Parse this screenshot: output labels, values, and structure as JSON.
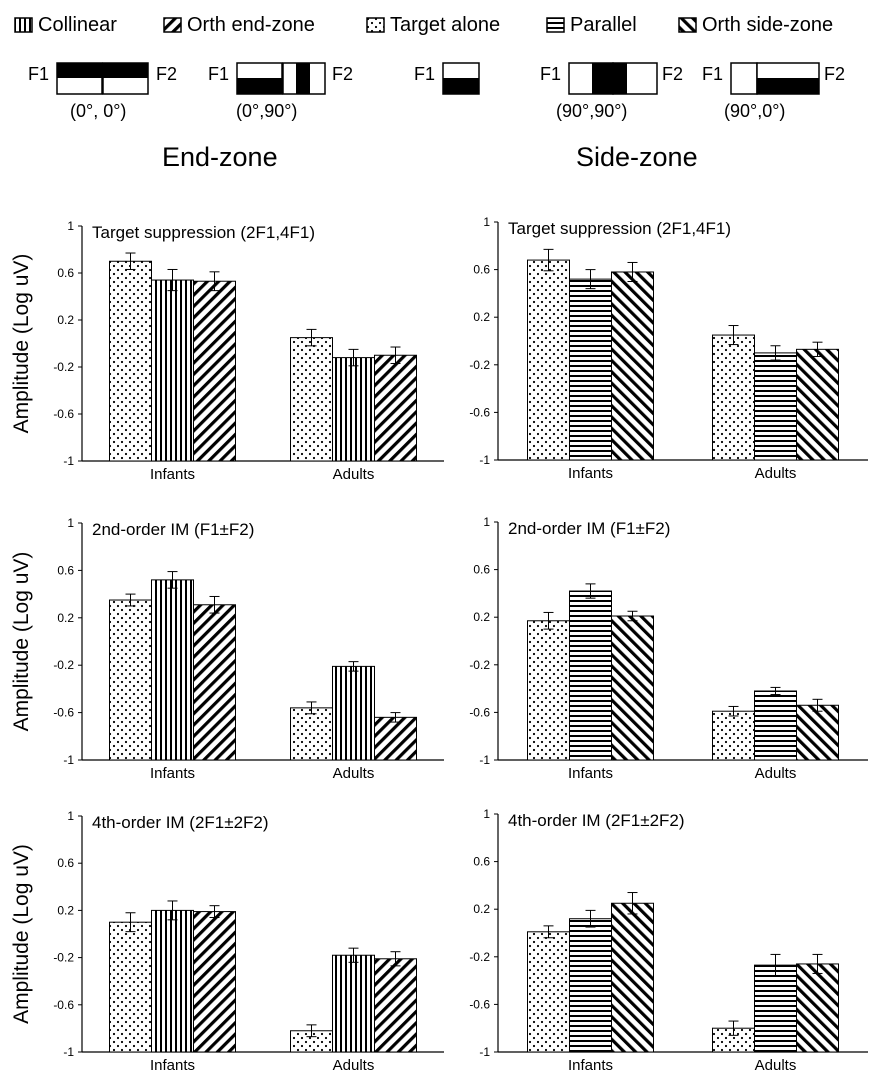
{
  "legend": [
    {
      "label": "Collinear",
      "pattern": "vertical"
    },
    {
      "label": "Orth end-zone",
      "pattern": "diag-up"
    },
    {
      "label": "Target alone",
      "pattern": "dots"
    },
    {
      "label": "Parallel",
      "pattern": "horizontal"
    },
    {
      "label": "Orth side-zone",
      "pattern": "diag-down"
    }
  ],
  "configs": [
    {
      "f1": "F1",
      "f2": "F2",
      "angle": "(0°, 0°)"
    },
    {
      "f1": "F1",
      "f2": "F2",
      "angle": "(0°,90°)"
    },
    {
      "f1": "F1",
      "f2": "",
      "angle": ""
    },
    {
      "f1": "F1",
      "f2": "F2",
      "angle": "(90°,90°)"
    },
    {
      "f1": "F1",
      "f2": "F2",
      "angle": "(90°,0°)"
    }
  ],
  "headings": {
    "end_zone": "End-zone",
    "side_zone": "Side-zone"
  },
  "colors": {
    "ink": "#000000",
    "background": "#ffffff"
  },
  "chart_data": [
    {
      "type": "bar",
      "zone": "end",
      "title": "Target suppression  (2F1,4F1)",
      "ylabel": "Amplitude (Log uV)",
      "categories": [
        "Infants",
        "Adults"
      ],
      "ylim": [
        -1,
        1
      ],
      "yticks": [
        "1",
        "0.6",
        "0.2",
        "-0.2",
        "-0.6",
        "-1"
      ],
      "series": [
        {
          "name": "Target alone",
          "pattern": "dots",
          "values": [
            0.7,
            0.05
          ],
          "errors": [
            0.07,
            0.07
          ]
        },
        {
          "name": "Collinear",
          "pattern": "vertical",
          "values": [
            0.54,
            -0.12
          ],
          "errors": [
            0.09,
            0.07
          ]
        },
        {
          "name": "Orth end-zone",
          "pattern": "diag-up",
          "values": [
            0.53,
            -0.1
          ],
          "errors": [
            0.08,
            0.07
          ]
        }
      ]
    },
    {
      "type": "bar",
      "zone": "side",
      "title": "Target suppression  (2F1,4F1)",
      "ylabel": "",
      "categories": [
        "Infants",
        "Adults"
      ],
      "ylim": [
        -1,
        1
      ],
      "yticks": [
        "1",
        "0.6",
        "0.2",
        "-0.2",
        "-0.6",
        "-1"
      ],
      "series": [
        {
          "name": "Target alone",
          "pattern": "dots",
          "values": [
            0.68,
            0.05
          ],
          "errors": [
            0.09,
            0.08
          ]
        },
        {
          "name": "Parallel",
          "pattern": "horizontal",
          "values": [
            0.52,
            -0.1
          ],
          "errors": [
            0.08,
            0.06
          ]
        },
        {
          "name": "Orth side-zone",
          "pattern": "diag-down",
          "values": [
            0.58,
            -0.07
          ],
          "errors": [
            0.08,
            0.06
          ]
        }
      ]
    },
    {
      "type": "bar",
      "zone": "end",
      "title": "2nd-order IM (F1±F2)",
      "ylabel": "Amplitude (Log uV)",
      "categories": [
        "Infants",
        "Adults"
      ],
      "ylim": [
        -1,
        1
      ],
      "yticks": [
        "1",
        "0.6",
        "0.2",
        "-0.2",
        "-0.6",
        "-1"
      ],
      "series": [
        {
          "name": "Target alone",
          "pattern": "dots",
          "values": [
            0.35,
            -0.56
          ],
          "errors": [
            0.05,
            0.05
          ]
        },
        {
          "name": "Collinear",
          "pattern": "vertical",
          "values": [
            0.52,
            -0.21
          ],
          "errors": [
            0.07,
            0.04
          ]
        },
        {
          "name": "Orth end-zone",
          "pattern": "diag-up",
          "values": [
            0.31,
            -0.64
          ],
          "errors": [
            0.07,
            0.04
          ]
        }
      ]
    },
    {
      "type": "bar",
      "zone": "side",
      "title": "2nd-order IM (F1±F2)",
      "ylabel": "",
      "categories": [
        "Infants",
        "Adults"
      ],
      "ylim": [
        -1,
        1
      ],
      "yticks": [
        "1",
        "0.6",
        "0.2",
        "-0.2",
        "-0.6",
        "-1"
      ],
      "series": [
        {
          "name": "Target alone",
          "pattern": "dots",
          "values": [
            0.17,
            -0.59
          ],
          "errors": [
            0.07,
            0.04
          ]
        },
        {
          "name": "Parallel",
          "pattern": "horizontal",
          "values": [
            0.42,
            -0.42
          ],
          "errors": [
            0.06,
            0.03
          ]
        },
        {
          "name": "Orth side-zone",
          "pattern": "diag-down",
          "values": [
            0.21,
            -0.54
          ],
          "errors": [
            0.04,
            0.05
          ]
        }
      ]
    },
    {
      "type": "bar",
      "zone": "end",
      "title": "4th-order IM (2F1±2F2)",
      "ylabel": "Amplitude (Log uV)",
      "categories": [
        "Infants",
        "Adults"
      ],
      "ylim": [
        -1,
        1
      ],
      "yticks": [
        "1",
        "0.6",
        "0.2",
        "-0.2",
        "-0.6",
        "-1"
      ],
      "series": [
        {
          "name": "Target alone",
          "pattern": "dots",
          "values": [
            0.1,
            -0.82
          ],
          "errors": [
            0.08,
            0.05
          ]
        },
        {
          "name": "Collinear",
          "pattern": "vertical",
          "values": [
            0.2,
            -0.18
          ],
          "errors": [
            0.08,
            0.06
          ]
        },
        {
          "name": "Orth end-zone",
          "pattern": "diag-up",
          "values": [
            0.19,
            -0.21
          ],
          "errors": [
            0.05,
            0.06
          ]
        }
      ]
    },
    {
      "type": "bar",
      "zone": "side",
      "title": "4th-order IM (2F1±2F2)",
      "ylabel": "",
      "categories": [
        "Infants",
        "Adults"
      ],
      "ylim": [
        -1,
        1
      ],
      "yticks": [
        "1",
        "0.6",
        "0.2",
        "-0.2",
        "-0.6",
        "-1"
      ],
      "series": [
        {
          "name": "Target alone",
          "pattern": "dots",
          "values": [
            0.01,
            -0.8
          ],
          "errors": [
            0.05,
            0.06
          ]
        },
        {
          "name": "Parallel",
          "pattern": "horizontal",
          "values": [
            0.12,
            -0.27
          ],
          "errors": [
            0.07,
            0.09
          ]
        },
        {
          "name": "Orth side-zone",
          "pattern": "diag-down",
          "values": [
            0.25,
            -0.26
          ],
          "errors": [
            0.09,
            0.08
          ]
        }
      ]
    }
  ]
}
